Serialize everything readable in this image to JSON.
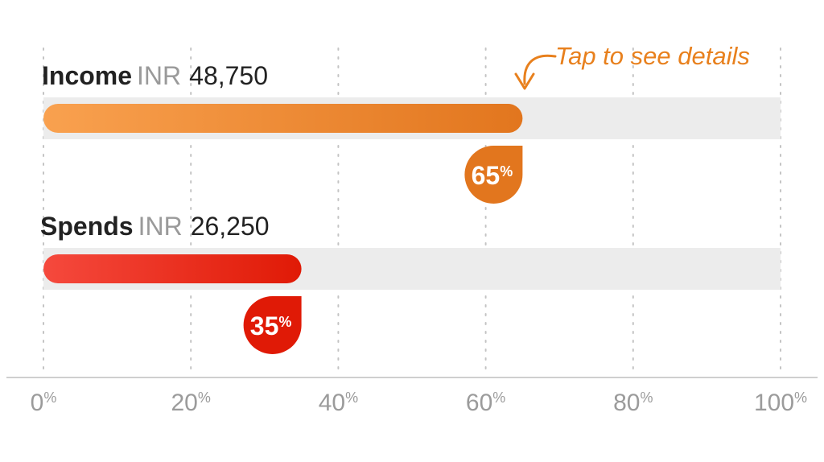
{
  "chart_data": {
    "type": "bar",
    "orientation": "horizontal",
    "categories": [
      "Income",
      "Spends"
    ],
    "values": [
      65,
      35
    ],
    "value_suffix": "%",
    "amounts": [
      {
        "currency": "INR",
        "amount": "48,750"
      },
      {
        "currency": "INR",
        "amount": "26,250"
      }
    ],
    "colors": [
      {
        "from": "#f9a14f",
        "to": "#e2761e"
      },
      {
        "from": "#f5493d",
        "to": "#e01a06"
      }
    ],
    "xlim": [
      0,
      100
    ],
    "x_ticks": [
      0,
      20,
      40,
      60,
      80,
      100
    ],
    "x_tick_labels": [
      "0",
      "20",
      "40",
      "60",
      "80",
      "100"
    ],
    "x_tick_suffix": "%",
    "grid": true,
    "track_color": "#ececec",
    "annotation": "Tap to see details"
  }
}
